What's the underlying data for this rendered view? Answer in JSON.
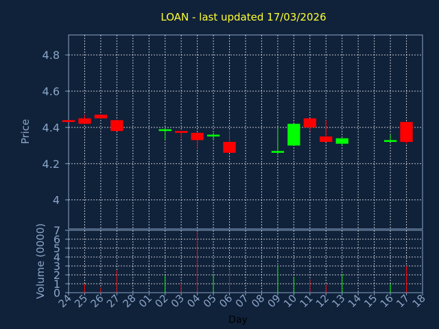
{
  "chart_data": {
    "type": "candlestick",
    "title": "LOAN - last updated 17/03/2026",
    "xlabel": "Day",
    "grid": true,
    "colors": {
      "up": "#00ff00",
      "down": "#ff0000",
      "background": "#10213a",
      "axis": "#8aa6c8",
      "title": "#ffff33",
      "xlabel": "#000000"
    },
    "x_tick_labels": [
      "24",
      "25",
      "26",
      "27",
      "28",
      "01",
      "02",
      "03",
      "04",
      "05",
      "06",
      "07",
      "08",
      "09",
      "10",
      "11",
      "12",
      "13",
      "14",
      "15",
      "16",
      "17",
      "18"
    ],
    "price_panel": {
      "ylabel": "Price",
      "ylim": [
        3.84,
        4.91
      ],
      "y_ticks": [
        4,
        4.2,
        4.4,
        4.6,
        4.8
      ],
      "y_tick_labels": [
        "4",
        "4.2",
        "4.4",
        "4.6",
        "4.8"
      ]
    },
    "volume_panel": {
      "ylabel": "Volume (0000)",
      "ylim": [
        0,
        7
      ],
      "y_ticks": [
        0,
        1,
        2,
        3,
        4,
        5,
        6,
        7
      ],
      "y_tick_labels": [
        "0",
        "1",
        "2",
        "3",
        "4",
        "5",
        "6",
        "7"
      ]
    },
    "candles": [
      {
        "day": "24",
        "open": 4.44,
        "high": 4.44,
        "low": 4.43,
        "close": 4.43
      },
      {
        "day": "25",
        "open": 4.45,
        "high": 4.47,
        "low": 4.42,
        "close": 4.42
      },
      {
        "day": "26",
        "open": 4.47,
        "high": 4.47,
        "low": 4.45,
        "close": 4.45
      },
      {
        "day": "27",
        "open": 4.44,
        "high": 4.44,
        "low": 4.38,
        "close": 4.38
      },
      {
        "day": "02",
        "open": 4.38,
        "high": 4.39,
        "low": 4.33,
        "close": 4.39
      },
      {
        "day": "03",
        "open": 4.38,
        "high": 4.38,
        "low": 4.34,
        "close": 4.37
      },
      {
        "day": "04",
        "open": 4.37,
        "high": 4.37,
        "low": 4.28,
        "close": 4.33
      },
      {
        "day": "05",
        "open": 4.35,
        "high": 4.37,
        "low": 4.33,
        "close": 4.36
      },
      {
        "day": "06",
        "open": 4.32,
        "high": 4.38,
        "low": 4.26,
        "close": 4.26
      },
      {
        "day": "09",
        "open": 4.26,
        "high": 4.4,
        "low": 4.25,
        "close": 4.27
      },
      {
        "day": "10",
        "open": 4.3,
        "high": 4.42,
        "low": 4.3,
        "close": 4.42
      },
      {
        "day": "11",
        "open": 4.45,
        "high": 4.45,
        "low": 4.38,
        "close": 4.4
      },
      {
        "day": "12",
        "open": 4.35,
        "high": 4.44,
        "low": 4.32,
        "close": 4.32
      },
      {
        "day": "13",
        "open": 4.31,
        "high": 4.34,
        "low": 4.3,
        "close": 4.34
      },
      {
        "day": "16",
        "open": 4.32,
        "high": 4.36,
        "low": 4.32,
        "close": 4.33
      },
      {
        "day": "17",
        "open": 4.43,
        "high": 4.43,
        "low": 4.31,
        "close": 4.32
      }
    ],
    "volume": [
      {
        "day": "25",
        "value": 1.0,
        "direction": "down"
      },
      {
        "day": "26",
        "value": 0.6,
        "direction": "down"
      },
      {
        "day": "27",
        "value": 2.5,
        "direction": "down"
      },
      {
        "day": "02",
        "value": 1.9,
        "direction": "up"
      },
      {
        "day": "03",
        "value": 1.1,
        "direction": "down"
      },
      {
        "day": "04",
        "value": 6.9,
        "direction": "down"
      },
      {
        "day": "05",
        "value": 2.1,
        "direction": "up"
      },
      {
        "day": "06",
        "value": 2.6,
        "direction": "down"
      },
      {
        "day": "09",
        "value": 3.0,
        "direction": "up"
      },
      {
        "day": "10",
        "value": 1.8,
        "direction": "up"
      },
      {
        "day": "11",
        "value": 1.5,
        "direction": "down"
      },
      {
        "day": "12",
        "value": 0.9,
        "direction": "down"
      },
      {
        "day": "13",
        "value": 2.1,
        "direction": "up"
      },
      {
        "day": "16",
        "value": 1.0,
        "direction": "up"
      },
      {
        "day": "17",
        "value": 3.0,
        "direction": "down"
      }
    ]
  }
}
